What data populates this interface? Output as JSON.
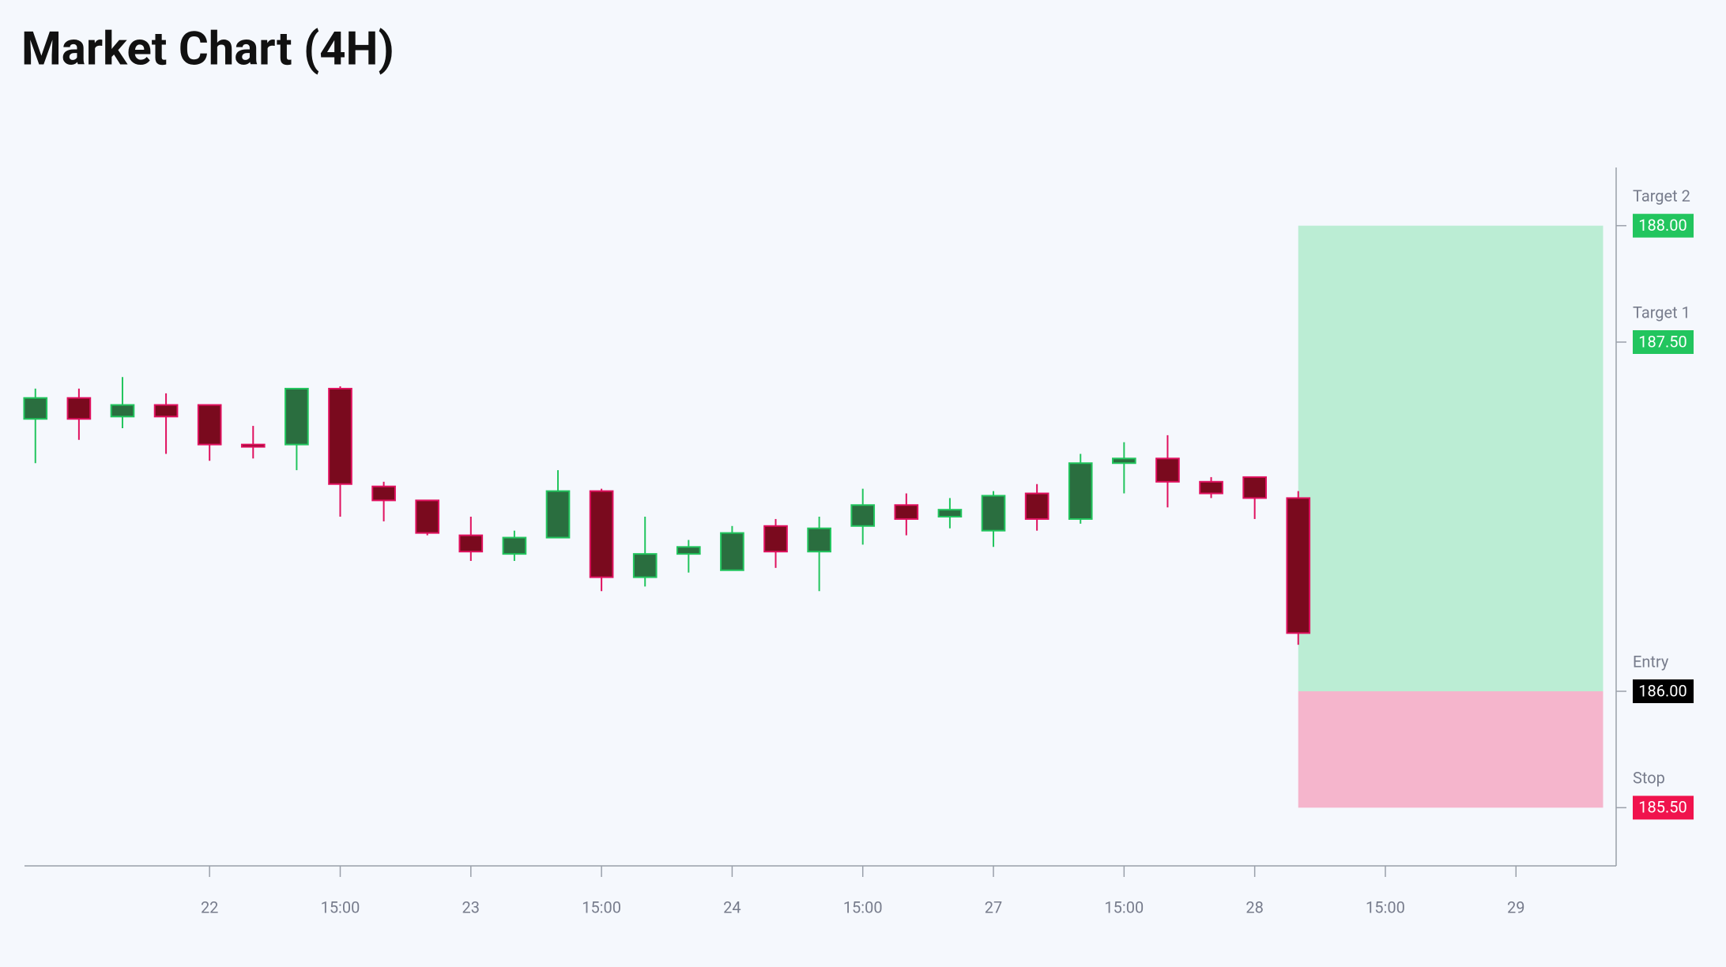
{
  "chart_data": {
    "type": "candlestick",
    "title": "Market Chart (4H)",
    "x": [
      0,
      1,
      2,
      3,
      4,
      5,
      6,
      7,
      8,
      9,
      10,
      11,
      12,
      13,
      14,
      15,
      16,
      17,
      18,
      19,
      20,
      21,
      22,
      23,
      24,
      25,
      26,
      27,
      28,
      29
    ],
    "open": [
      187.17,
      187.26,
      187.18,
      187.23,
      187.23,
      187.06,
      187.06,
      187.3,
      186.88,
      186.82,
      186.67,
      186.59,
      186.66,
      186.86,
      186.49,
      186.59,
      186.52,
      186.71,
      186.6,
      186.71,
      186.8,
      186.75,
      186.69,
      186.85,
      186.74,
      186.98,
      187.0,
      186.9,
      186.92,
      186.83
    ],
    "high": [
      187.3,
      187.3,
      187.35,
      187.28,
      187.23,
      187.14,
      187.3,
      187.31,
      186.9,
      186.82,
      186.75,
      186.69,
      186.95,
      186.87,
      186.75,
      186.65,
      186.71,
      186.74,
      186.75,
      186.87,
      186.85,
      186.83,
      186.86,
      186.89,
      187.02,
      187.07,
      187.1,
      186.92,
      186.92,
      186.86
    ],
    "low": [
      186.98,
      187.08,
      187.13,
      187.02,
      186.99,
      187.0,
      186.95,
      186.75,
      186.73,
      186.67,
      186.56,
      186.56,
      186.66,
      186.43,
      186.45,
      186.51,
      186.52,
      186.53,
      186.43,
      186.63,
      186.67,
      186.7,
      186.62,
      186.69,
      186.72,
      186.85,
      186.79,
      186.83,
      186.74,
      186.2
    ],
    "close": [
      187.26,
      187.17,
      187.23,
      187.18,
      187.06,
      187.05,
      187.3,
      186.89,
      186.82,
      186.68,
      186.6,
      186.66,
      186.86,
      186.49,
      186.59,
      186.62,
      186.68,
      186.6,
      186.7,
      186.8,
      186.74,
      186.78,
      186.84,
      186.74,
      186.98,
      187.0,
      186.9,
      186.85,
      186.83,
      186.25
    ],
    "up_color": "#2a6e3f",
    "up_border": "#22c55e",
    "down_color": "#7a0a1e",
    "down_border": "#e0115f",
    "xlim": [
      -0.25,
      36.3
    ],
    "xticks": [
      {
        "value": 4,
        "label": "22"
      },
      {
        "value": 7,
        "label": "15:00"
      },
      {
        "value": 10,
        "label": "23"
      },
      {
        "value": 13,
        "label": "15:00"
      },
      {
        "value": 16,
        "label": "24"
      },
      {
        "value": 19,
        "label": "15:00"
      },
      {
        "value": 22,
        "label": "27"
      },
      {
        "value": 25,
        "label": "15:00"
      },
      {
        "value": 28,
        "label": "28"
      },
      {
        "value": 31,
        "label": "15:00"
      },
      {
        "value": 34,
        "label": "29"
      }
    ],
    "ylim": [
      185.25,
      188.25
    ],
    "yticks": [
      {
        "value": 188,
        "label": "188.00"
      },
      {
        "value": 187.5,
        "label": "187.50"
      },
      {
        "value": 186,
        "label": "186.00"
      },
      {
        "value": 185.5,
        "label": "185.50"
      }
    ],
    "position": {
      "x": [
        29,
        36
      ],
      "levels": [
        {
          "name": "Target 2",
          "value": 188,
          "color": "#22c55e"
        },
        {
          "name": "Target 1",
          "value": 187.5,
          "color": "#22c55e"
        },
        {
          "name": "Entry",
          "value": 186,
          "color": "#000000"
        },
        {
          "name": "Stop",
          "value": 185.5,
          "color": "#f0134d"
        }
      ],
      "profit_color": "#bbedd4",
      "loss_color": "#f5b5cc"
    }
  }
}
